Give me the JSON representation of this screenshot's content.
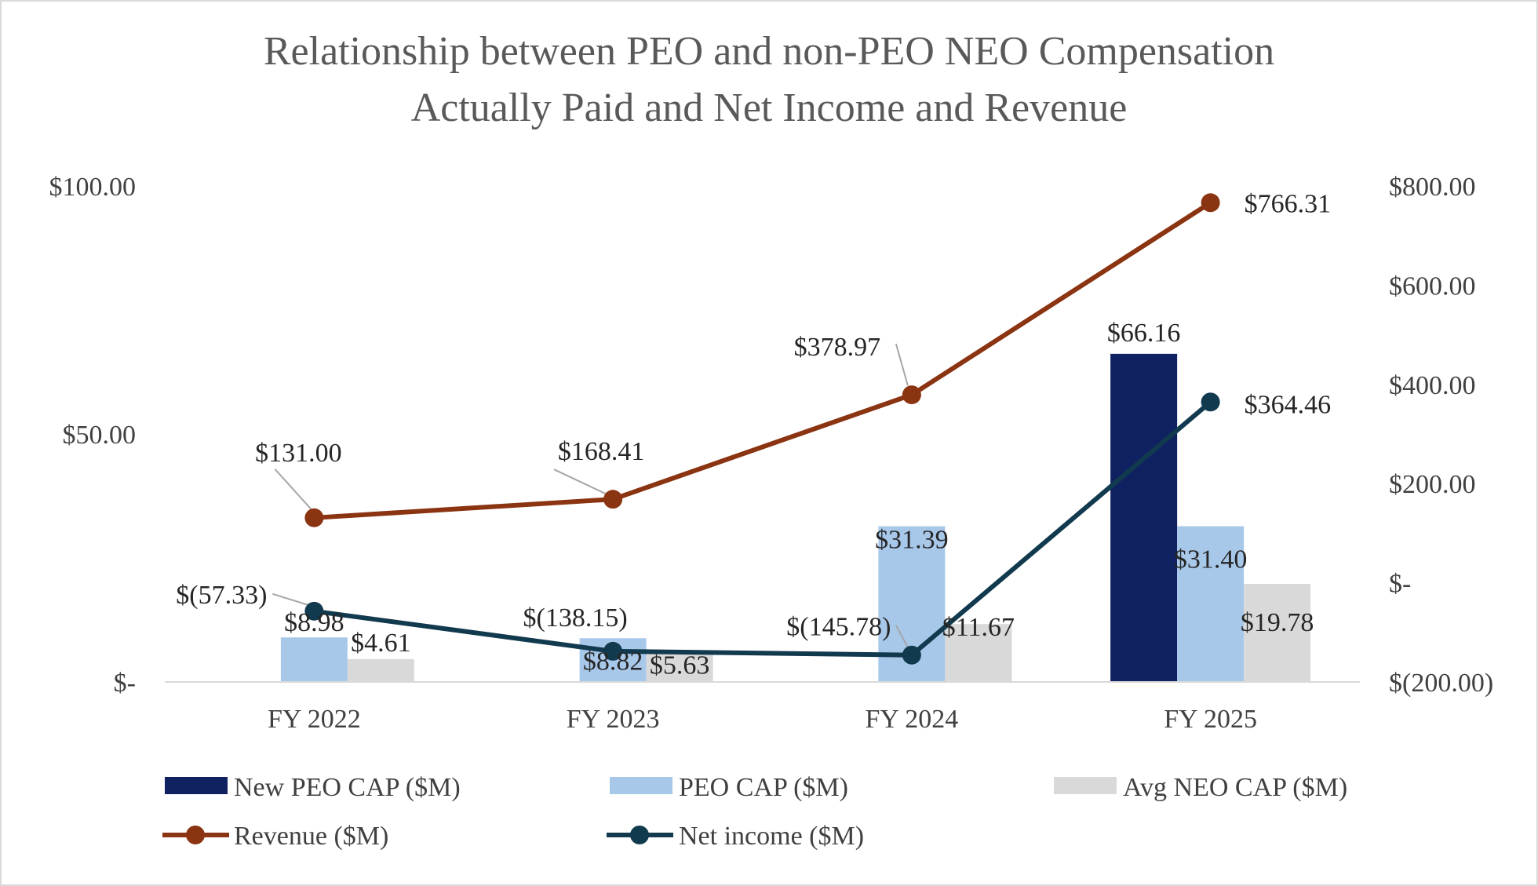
{
  "chart_data": {
    "type": "bar",
    "title_lines": [
      "Relationship between PEO and non-PEO NEO Compensation",
      "Actually Paid and Net Income and Revenue"
    ],
    "categories": [
      "FY 2022",
      "FY 2023",
      "FY 2024",
      "FY 2025"
    ],
    "left_axis": {
      "ylim": [
        0,
        100
      ],
      "ticks": [
        0,
        50,
        100
      ],
      "tick_labels": [
        "$-",
        "$50.00",
        "$100.00"
      ]
    },
    "right_axis": {
      "ylim": [
        -200,
        800
      ],
      "ticks": [
        -200,
        0,
        200,
        400,
        600,
        800
      ],
      "tick_labels": [
        "$(200.00)",
        "$-",
        "$200.00",
        "$400.00",
        "$600.00",
        "$800.00"
      ]
    },
    "bar_series": [
      {
        "name": "New PEO CAP ($M)",
        "color": "#0f2160",
        "values": [
          null,
          null,
          null,
          66.16
        ],
        "labels": [
          null,
          null,
          null,
          "$66.16"
        ]
      },
      {
        "name": "PEO CAP ($M)",
        "color": "#a8c8ea",
        "values": [
          8.98,
          8.82,
          31.39,
          31.4
        ],
        "labels": [
          "$8.98",
          "$8.82",
          "$31.39",
          "$31.40"
        ]
      },
      {
        "name": "Avg NEO CAP ($M)",
        "color": "#d9d9d9",
        "values": [
          4.61,
          5.63,
          11.67,
          19.78
        ],
        "labels": [
          "$4.61",
          "$5.63",
          "$11.67",
          "$19.78"
        ]
      }
    ],
    "line_series": [
      {
        "name": "Revenue ($M)",
        "color": "#8b3412",
        "axis": "right",
        "values": [
          131.0,
          168.41,
          378.97,
          766.31
        ],
        "labels": [
          "$131.00",
          "$168.41",
          "$378.97",
          "$766.31"
        ]
      },
      {
        "name": "Net income ($M)",
        "color": "#123a4f",
        "axis": "right",
        "values": [
          -57.33,
          -138.15,
          -145.78,
          364.46
        ],
        "labels": [
          "$(57.33)",
          "$(138.15)",
          "$(145.78)",
          "$364.46"
        ]
      }
    ],
    "legend_position": "bottom"
  }
}
